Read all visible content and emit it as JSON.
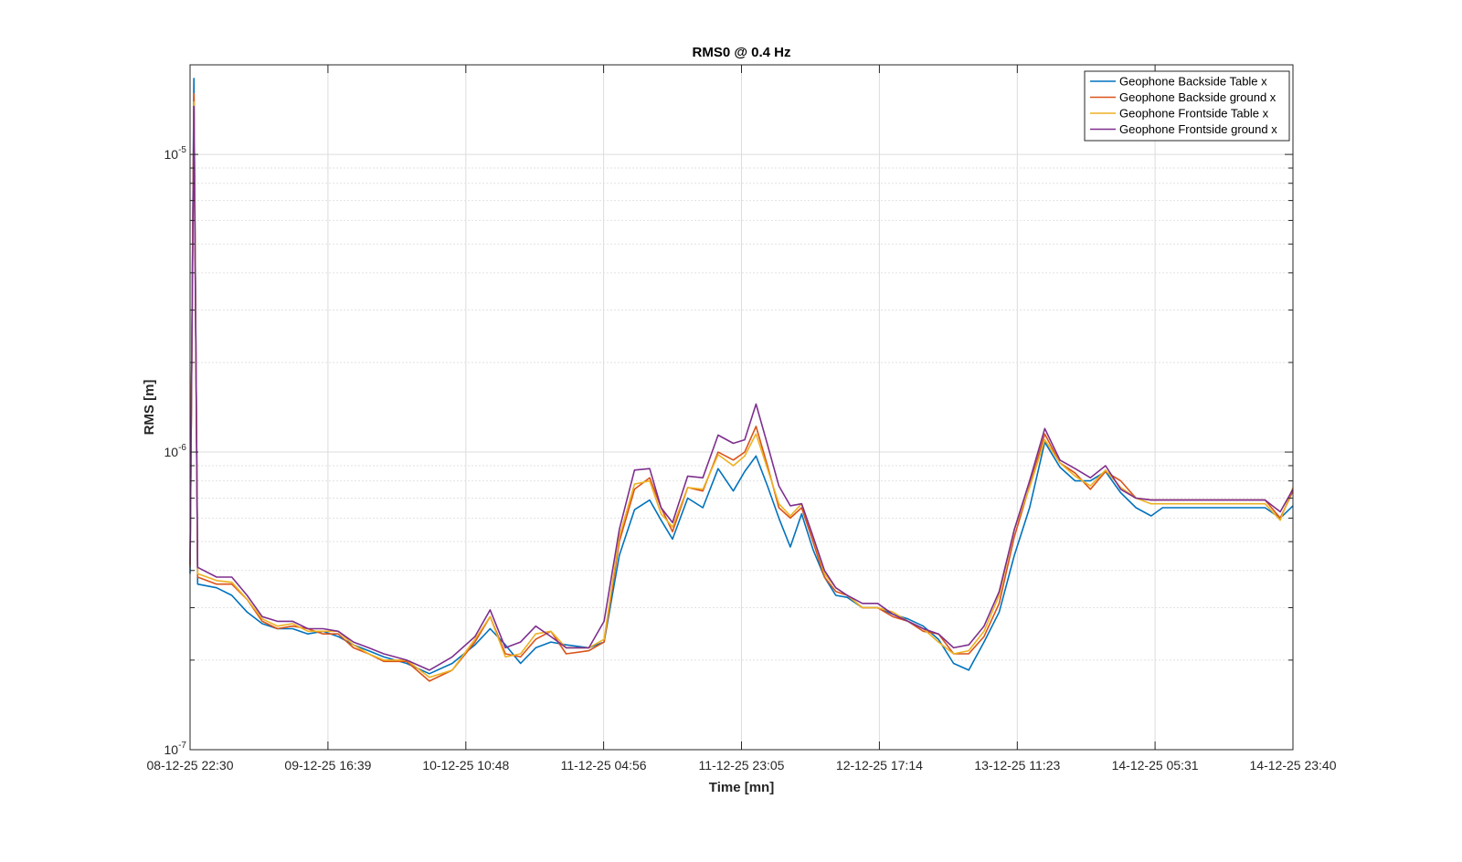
{
  "chart_data": {
    "type": "line",
    "title": "RMS0 @ 0.4 Hz",
    "xlabel": "Time [mn]",
    "ylabel": "RMS [m]",
    "y_scale": "log",
    "ylim": [
      1e-07,
      2e-05
    ],
    "xlim": [
      "08-12-25 22:30",
      "14-12-25 23:40"
    ],
    "x_ticks": [
      "08-12-25 22:30",
      "09-12-25 16:39",
      "10-12-25 10:48",
      "11-12-25 04:56",
      "11-12-25 23:05",
      "12-12-25 17:14",
      "13-12-25 11:23",
      "14-12-25 05:31",
      "14-12-25 23:40"
    ],
    "y_ticks": [
      {
        "label": "10",
        "exp": "-7",
        "value": 1e-07
      },
      {
        "label": "10",
        "exp": "-6",
        "value": 1e-06
      },
      {
        "label": "10",
        "exp": "-5",
        "value": 1e-05
      }
    ],
    "grid": true,
    "legend_position": "top-right",
    "series": [
      {
        "name": "Geophone Backside Table x",
        "color": "#0072BD",
        "x": [
          "08-12-25 22:30",
          "08-12-25 23:00",
          "08-12-25 23:30",
          "09-12-25 02:00",
          "09-12-25 04:00",
          "09-12-25 06:00",
          "09-12-25 08:00",
          "09-12-25 10:00",
          "09-12-25 12:00",
          "09-12-25 14:00",
          "09-12-25 16:00",
          "09-12-25 18:00",
          "09-12-25 20:00",
          "09-12-25 22:00",
          "10-12-25 00:00",
          "10-12-25 03:00",
          "10-12-25 06:00",
          "10-12-25 09:00",
          "10-12-25 12:00",
          "10-12-25 14:00",
          "10-12-25 16:00",
          "10-12-25 18:00",
          "10-12-25 20:00",
          "10-12-25 22:00",
          "11-12-25 00:00",
          "11-12-25 03:00",
          "11-12-25 05:00",
          "11-12-25 07:00",
          "11-12-25 09:00",
          "11-12-25 11:00",
          "11-12-25 12:30",
          "11-12-25 14:00",
          "11-12-25 16:00",
          "11-12-25 18:00",
          "11-12-25 20:00",
          "11-12-25 22:00",
          "11-12-25 23:30",
          "12-12-25 01:00",
          "12-12-25 02:30",
          "12-12-25 04:00",
          "12-12-25 05:30",
          "12-12-25 07:00",
          "12-12-25 08:30",
          "12-12-25 10:00",
          "12-12-25 11:30",
          "12-12-25 13:00",
          "12-12-25 15:00",
          "12-12-25 17:00",
          "12-12-25 19:00",
          "12-12-25 21:00",
          "12-12-25 23:00",
          "13-12-25 01:00",
          "13-12-25 03:00",
          "13-12-25 05:00",
          "13-12-25 07:00",
          "13-12-25 09:00",
          "13-12-25 11:00",
          "13-12-25 13:00",
          "13-12-25 15:00",
          "13-12-25 17:00",
          "13-12-25 19:00",
          "13-12-25 21:00",
          "13-12-25 23:00",
          "14-12-25 01:00",
          "14-12-25 03:00",
          "14-12-25 05:00",
          "14-12-25 06:30",
          "14-12-25 08:00",
          "14-12-25 10:00",
          "14-12-25 12:00",
          "14-12-25 14:00",
          "14-12-25 16:00",
          "14-12-25 18:00",
          "14-12-25 20:00",
          "14-12-25 22:00",
          "14-12-25 23:40"
        ],
        "y": [
          3.9e-07,
          1.8e-05,
          3.6e-07,
          3.5e-07,
          3.3e-07,
          2.9e-07,
          2.65e-07,
          2.55e-07,
          2.55e-07,
          2.45e-07,
          2.5e-07,
          2.4e-07,
          2.25e-07,
          2.15e-07,
          2.05e-07,
          1.95e-07,
          1.8e-07,
          1.95e-07,
          2.25e-07,
          2.55e-07,
          2.25e-07,
          1.95e-07,
          2.2e-07,
          2.3e-07,
          2.25e-07,
          2.2e-07,
          2.3e-07,
          4.5e-07,
          6.4e-07,
          6.9e-07,
          5.9e-07,
          5.1e-07,
          7e-07,
          6.5e-07,
          8.8e-07,
          7.4e-07,
          8.6e-07,
          9.7e-07,
          7.7e-07,
          6e-07,
          4.8e-07,
          6.2e-07,
          4.7e-07,
          3.8e-07,
          3.3e-07,
          3.25e-07,
          3e-07,
          3e-07,
          2.85e-07,
          2.75e-07,
          2.6e-07,
          2.35e-07,
          1.95e-07,
          1.85e-07,
          2.3e-07,
          2.9e-07,
          4.5e-07,
          6.5e-07,
          1.08e-06,
          8.9e-07,
          8e-07,
          8e-07,
          8.6e-07,
          7.3e-07,
          6.5e-07,
          6.1e-07,
          6.5e-07,
          6.5e-07,
          6.5e-07,
          6.5e-07,
          6.5e-07,
          6.5e-07,
          6.5e-07,
          6.5e-07,
          6e-07,
          6.6e-07
        ]
      },
      {
        "name": "Geophone Backside ground x",
        "color": "#D95319",
        "x": [
          "08-12-25 22:30",
          "08-12-25 23:00",
          "08-12-25 23:30",
          "09-12-25 02:00",
          "09-12-25 04:00",
          "09-12-25 06:00",
          "09-12-25 08:00",
          "09-12-25 10:00",
          "09-12-25 12:00",
          "09-12-25 14:00",
          "09-12-25 16:00",
          "09-12-25 18:00",
          "09-12-25 20:00",
          "09-12-25 22:00",
          "10-12-25 00:00",
          "10-12-25 03:00",
          "10-12-25 06:00",
          "10-12-25 09:00",
          "10-12-25 12:00",
          "10-12-25 14:00",
          "10-12-25 16:00",
          "10-12-25 18:00",
          "10-12-25 20:00",
          "10-12-25 22:00",
          "11-12-25 00:00",
          "11-12-25 03:00",
          "11-12-25 05:00",
          "11-12-25 07:00",
          "11-12-25 09:00",
          "11-12-25 11:00",
          "11-12-25 12:30",
          "11-12-25 14:00",
          "11-12-25 16:00",
          "11-12-25 18:00",
          "11-12-25 20:00",
          "11-12-25 22:00",
          "11-12-25 23:30",
          "12-12-25 01:00",
          "12-12-25 02:30",
          "12-12-25 04:00",
          "12-12-25 05:30",
          "12-12-25 07:00",
          "12-12-25 08:30",
          "12-12-25 10:00",
          "12-12-25 11:30",
          "12-12-25 13:00",
          "12-12-25 15:00",
          "12-12-25 17:00",
          "12-12-25 19:00",
          "12-12-25 21:00",
          "12-12-25 23:00",
          "13-12-25 01:00",
          "13-12-25 03:00",
          "13-12-25 05:00",
          "13-12-25 07:00",
          "13-12-25 09:00",
          "13-12-25 11:00",
          "13-12-25 13:00",
          "13-12-25 15:00",
          "13-12-25 17:00",
          "13-12-25 19:00",
          "13-12-25 21:00",
          "13-12-25 23:00",
          "14-12-25 01:00",
          "14-12-25 03:00",
          "14-12-25 05:00",
          "14-12-25 06:30",
          "14-12-25 08:00",
          "14-12-25 10:00",
          "14-12-25 12:00",
          "14-12-25 14:00",
          "14-12-25 16:00",
          "14-12-25 18:00",
          "14-12-25 20:00",
          "14-12-25 22:00",
          "14-12-25 23:40"
        ],
        "y": [
          4.1e-07,
          1.6e-05,
          3.8e-07,
          3.6e-07,
          3.6e-07,
          3.2e-07,
          2.7e-07,
          2.55e-07,
          2.6e-07,
          2.55e-07,
          2.45e-07,
          2.45e-07,
          2.2e-07,
          2.1e-07,
          1.98e-07,
          1.98e-07,
          1.7e-07,
          1.85e-07,
          2.3e-07,
          2.8e-07,
          2.1e-07,
          2.05e-07,
          2.35e-07,
          2.5e-07,
          2.1e-07,
          2.15e-07,
          2.3e-07,
          5e-07,
          7.5e-07,
          8.2e-07,
          6.5e-07,
          5.4e-07,
          7.6e-07,
          7.4e-07,
          1e-06,
          9.4e-07,
          1e-06,
          1.22e-06,
          9e-07,
          6.5e-07,
          6e-07,
          6.5e-07,
          5e-07,
          3.8e-07,
          3.4e-07,
          3.3e-07,
          3e-07,
          3e-07,
          2.8e-07,
          2.7e-07,
          2.5e-07,
          2.45e-07,
          2.1e-07,
          2.1e-07,
          2.4e-07,
          3.1e-07,
          5.2e-07,
          7.7e-07,
          1.15e-06,
          9.2e-07,
          8.5e-07,
          7.5e-07,
          8.6e-07,
          8e-07,
          7e-07,
          6.9e-07,
          6.9e-07,
          6.9e-07,
          6.9e-07,
          6.9e-07,
          6.9e-07,
          6.9e-07,
          6.9e-07,
          6.9e-07,
          6e-07,
          7.4e-07
        ]
      },
      {
        "name": "Geophone Frontside Table x",
        "color": "#EDB120",
        "x": [
          "08-12-25 22:30",
          "08-12-25 23:00",
          "08-12-25 23:30",
          "09-12-25 02:00",
          "09-12-25 04:00",
          "09-12-25 06:00",
          "09-12-25 08:00",
          "09-12-25 10:00",
          "09-12-25 12:00",
          "09-12-25 14:00",
          "09-12-25 16:00",
          "09-12-25 18:00",
          "09-12-25 20:00",
          "09-12-25 22:00",
          "10-12-25 00:00",
          "10-12-25 03:00",
          "10-12-25 06:00",
          "10-12-25 09:00",
          "10-12-25 12:00",
          "10-12-25 14:00",
          "10-12-25 16:00",
          "10-12-25 18:00",
          "10-12-25 20:00",
          "10-12-25 22:00",
          "11-12-25 00:00",
          "11-12-25 03:00",
          "11-12-25 05:00",
          "11-12-25 07:00",
          "11-12-25 09:00",
          "11-12-25 11:00",
          "11-12-25 12:30",
          "11-12-25 14:00",
          "11-12-25 16:00",
          "11-12-25 18:00",
          "11-12-25 20:00",
          "11-12-25 22:00",
          "11-12-25 23:30",
          "12-12-25 01:00",
          "12-12-25 02:30",
          "12-12-25 04:00",
          "12-12-25 05:30",
          "12-12-25 07:00",
          "12-12-25 08:30",
          "12-12-25 10:00",
          "12-12-25 11:30",
          "12-12-25 13:00",
          "12-12-25 15:00",
          "12-12-25 17:00",
          "12-12-25 19:00",
          "12-12-25 21:00",
          "12-12-25 23:00",
          "13-12-25 01:00",
          "13-12-25 03:00",
          "13-12-25 05:00",
          "13-12-25 07:00",
          "13-12-25 09:00",
          "13-12-25 11:00",
          "13-12-25 13:00",
          "13-12-25 15:00",
          "13-12-25 17:00",
          "13-12-25 19:00",
          "13-12-25 21:00",
          "13-12-25 23:00",
          "14-12-25 01:00",
          "14-12-25 03:00",
          "14-12-25 05:00",
          "14-12-25 06:30",
          "14-12-25 08:00",
          "14-12-25 10:00",
          "14-12-25 12:00",
          "14-12-25 14:00",
          "14-12-25 16:00",
          "14-12-25 18:00",
          "14-12-25 20:00",
          "14-12-25 22:00",
          "14-12-25 23:40"
        ],
        "y": [
          4.2e-07,
          1.5e-05,
          3.9e-07,
          3.7e-07,
          3.65e-07,
          3.2e-07,
          2.75e-07,
          2.6e-07,
          2.65e-07,
          2.5e-07,
          2.5e-07,
          2.5e-07,
          2.25e-07,
          2.1e-07,
          2e-07,
          2e-07,
          1.75e-07,
          1.85e-07,
          2.35e-07,
          2.8e-07,
          2.05e-07,
          2.1e-07,
          2.45e-07,
          2.5e-07,
          2.2e-07,
          2.2e-07,
          2.35e-07,
          5.2e-07,
          7.8e-07,
          8e-07,
          6.2e-07,
          5.6e-07,
          7.6e-07,
          7.5e-07,
          9.8e-07,
          9e-07,
          9.7e-07,
          1.15e-06,
          8.8e-07,
          6.7e-07,
          6.1e-07,
          6.7e-07,
          5.2e-07,
          3.9e-07,
          3.5e-07,
          3.3e-07,
          3e-07,
          3e-07,
          2.9e-07,
          2.7e-07,
          2.55e-07,
          2.3e-07,
          2.1e-07,
          2.15e-07,
          2.5e-07,
          3.3e-07,
          5.5e-07,
          7.6e-07,
          1.1e-06,
          9.2e-07,
          8.3e-07,
          7.7e-07,
          8.7e-07,
          7.6e-07,
          7e-07,
          6.7e-07,
          6.7e-07,
          6.7e-07,
          6.7e-07,
          6.7e-07,
          6.7e-07,
          6.7e-07,
          6.7e-07,
          6.7e-07,
          5.9e-07,
          7.6e-07
        ]
      },
      {
        "name": "Geophone Frontside ground x",
        "color": "#7E2F8E",
        "x": [
          "08-12-25 22:30",
          "08-12-25 23:00",
          "08-12-25 23:30",
          "09-12-25 02:00",
          "09-12-25 04:00",
          "09-12-25 06:00",
          "09-12-25 08:00",
          "09-12-25 10:00",
          "09-12-25 12:00",
          "09-12-25 14:00",
          "09-12-25 16:00",
          "09-12-25 18:00",
          "09-12-25 20:00",
          "09-12-25 22:00",
          "10-12-25 00:00",
          "10-12-25 03:00",
          "10-12-25 06:00",
          "10-12-25 09:00",
          "10-12-25 12:00",
          "10-12-25 14:00",
          "10-12-25 16:00",
          "10-12-25 18:00",
          "10-12-25 20:00",
          "10-12-25 22:00",
          "11-12-25 00:00",
          "11-12-25 03:00",
          "11-12-25 05:00",
          "11-12-25 07:00",
          "11-12-25 09:00",
          "11-12-25 11:00",
          "11-12-25 12:30",
          "11-12-25 14:00",
          "11-12-25 16:00",
          "11-12-25 18:00",
          "11-12-25 20:00",
          "11-12-25 22:00",
          "11-12-25 23:30",
          "12-12-25 01:00",
          "12-12-25 02:30",
          "12-12-25 04:00",
          "12-12-25 05:30",
          "12-12-25 07:00",
          "12-12-25 08:30",
          "12-12-25 10:00",
          "12-12-25 11:30",
          "12-12-25 13:00",
          "12-12-25 15:00",
          "12-12-25 17:00",
          "12-12-25 19:00",
          "12-12-25 21:00",
          "12-12-25 23:00",
          "13-12-25 01:00",
          "13-12-25 03:00",
          "13-12-25 05:00",
          "13-12-25 07:00",
          "13-12-25 09:00",
          "13-12-25 11:00",
          "13-12-25 13:00",
          "13-12-25 15:00",
          "13-12-25 17:00",
          "13-12-25 19:00",
          "13-12-25 21:00",
          "13-12-25 23:00",
          "14-12-25 01:00",
          "14-12-25 03:00",
          "14-12-25 05:00",
          "14-12-25 06:30",
          "14-12-25 08:00",
          "14-12-25 10:00",
          "14-12-25 12:00",
          "14-12-25 14:00",
          "14-12-25 16:00",
          "14-12-25 18:00",
          "14-12-25 20:00",
          "14-12-25 22:00",
          "14-12-25 23:40"
        ],
        "y": [
          4.2e-07,
          1.45e-05,
          4.1e-07,
          3.8e-07,
          3.8e-07,
          3.3e-07,
          2.8e-07,
          2.7e-07,
          2.7e-07,
          2.55e-07,
          2.55e-07,
          2.5e-07,
          2.3e-07,
          2.2e-07,
          2.1e-07,
          2e-07,
          1.85e-07,
          2.05e-07,
          2.4e-07,
          2.95e-07,
          2.2e-07,
          2.3e-07,
          2.6e-07,
          2.4e-07,
          2.2e-07,
          2.2e-07,
          2.7e-07,
          5.5e-07,
          8.7e-07,
          8.8e-07,
          6.5e-07,
          5.8e-07,
          8.3e-07,
          8.2e-07,
          1.14e-06,
          1.07e-06,
          1.1e-06,
          1.45e-06,
          1.06e-06,
          7.7e-07,
          6.6e-07,
          6.7e-07,
          5.2e-07,
          4e-07,
          3.5e-07,
          3.3e-07,
          3.1e-07,
          3.1e-07,
          2.85e-07,
          2.7e-07,
          2.55e-07,
          2.45e-07,
          2.2e-07,
          2.25e-07,
          2.6e-07,
          3.4e-07,
          5.5e-07,
          8e-07,
          1.2e-06,
          9.4e-07,
          8.8e-07,
          8.2e-07,
          9e-07,
          7.5e-07,
          7e-07,
          6.9e-07,
          6.9e-07,
          6.9e-07,
          6.9e-07,
          6.9e-07,
          6.9e-07,
          6.9e-07,
          6.9e-07,
          6.9e-07,
          6.3e-07,
          7.5e-07
        ]
      }
    ]
  }
}
